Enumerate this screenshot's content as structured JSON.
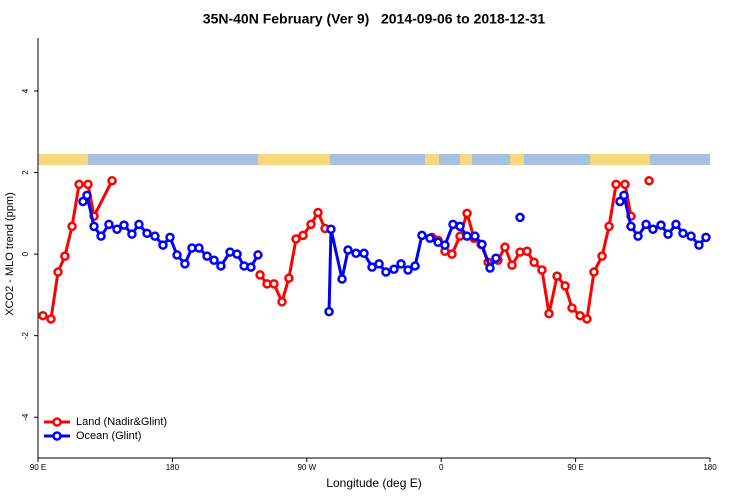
{
  "chart_data": {
    "type": "line",
    "title": "35N-40N February (Ver 9)   2014-09-06 to 2018-12-31",
    "x_label": "Longitude (deg E)",
    "y_label": "XCO2 - MLO trend (ppm)",
    "xlim": [
      90,
      540
    ],
    "ylim": [
      -5,
      5.3
    ],
    "xticks": [
      {
        "value": 90,
        "label": "90 E"
      },
      {
        "value": 180,
        "label": "180"
      },
      {
        "value": 270,
        "label": "90 W"
      },
      {
        "value": 360,
        "label": "0"
      },
      {
        "value": 450,
        "label": "90 E"
      },
      {
        "value": 540,
        "label": "180"
      }
    ],
    "yticks": [
      -4,
      -2,
      0,
      2,
      4
    ],
    "legend": "bottom-left",
    "series": [
      {
        "name": "Land (Nadir&Glint)",
        "color": "#ff0000",
        "x": [
          93.3,
          98.7,
          103.4,
          108,
          112.8,
          117.5,
          123.5,
          127.5,
          139.6,
          null,
          238.7,
          243.4,
          248,
          253.4,
          258,
          262.8,
          267.5,
          272.8,
          277.5,
          282.2,
          null,
          353.8,
          357.9,
          362.5,
          367.2,
          372.6,
          377.3,
          382,
          386.7,
          391.4,
          398,
          402.7,
          407.4,
          412.8,
          417.5,
          422.2,
          427.5,
          432.2,
          437.6,
          443,
          447.6,
          453,
          457.6,
          462.3,
          467.7,
          472.4,
          477.1,
          483.1,
          487.1,
          null,
          499.2
        ],
        "values": [
          -1.51,
          -1.59,
          -0.44,
          -0.05,
          0.68,
          1.71,
          1.71,
          0.93,
          1.8,
          null,
          -0.51,
          -0.73,
          -0.73,
          -1.17,
          -0.59,
          0.37,
          0.46,
          0.73,
          1.02,
          0.63,
          null,
          0.41,
          0.34,
          0.07,
          0,
          0.44,
          1.0,
          0.39,
          0.24,
          -0.2,
          -0.15,
          0.17,
          -0.27,
          0.05,
          0.07,
          -0.2,
          -0.39,
          -1.46,
          -0.54,
          -0.78,
          -1.32,
          -1.51,
          -1.59,
          -0.44,
          -0.05,
          0.68,
          1.71,
          1.71,
          0.93,
          null,
          1.8
        ]
      },
      {
        "name": "Ocean (Glint)",
        "color": "#0000ff",
        "x": [
          120.1,
          122.8,
          127.5,
          132.2,
          137.5,
          142.9,
          147.6,
          152.9,
          157.6,
          163,
          168.3,
          173.7,
          178.4,
          183.1,
          188.4,
          193.1,
          197.8,
          203.2,
          207.9,
          212.5,
          218.6,
          223.3,
          228,
          232.6,
          237.3,
          null,
          284.9,
          286.2,
          293.6,
          297.6,
          303,
          308.3,
          313.7,
          318.4,
          323,
          328.4,
          333.1,
          337.8,
          342.5,
          347.1,
          352.5,
          357.9,
          362.5,
          367.9,
          372.6,
          377.3,
          382.6,
          387.3,
          392.7,
          396.7,
          null,
          412.8,
          null,
          479.7,
          482.4,
          487.1,
          491.8,
          497.2,
          501.8,
          507.2,
          511.9,
          517.2,
          521.9,
          527.3,
          532.6,
          537.3
        ],
        "values": [
          1.29,
          1.44,
          0.68,
          0.44,
          0.73,
          0.61,
          0.71,
          0.49,
          0.73,
          0.51,
          0.44,
          0.22,
          0.41,
          -0.02,
          -0.24,
          0.15,
          0.15,
          -0.05,
          -0.15,
          -0.29,
          0.05,
          0,
          -0.29,
          -0.32,
          -0.02,
          null,
          -1.41,
          0.61,
          -0.61,
          0.1,
          0.02,
          0.02,
          -0.32,
          -0.24,
          -0.44,
          -0.37,
          -0.24,
          -0.39,
          -0.29,
          0.46,
          0.39,
          0.29,
          0.22,
          0.73,
          0.68,
          0.44,
          0.44,
          0.24,
          -0.34,
          -0.1,
          null,
          0.9,
          null,
          1.29,
          1.44,
          0.68,
          0.44,
          0.73,
          0.61,
          0.71,
          0.49,
          0.73,
          0.51,
          0.44,
          0.22,
          0.41
        ]
      }
    ]
  }
}
